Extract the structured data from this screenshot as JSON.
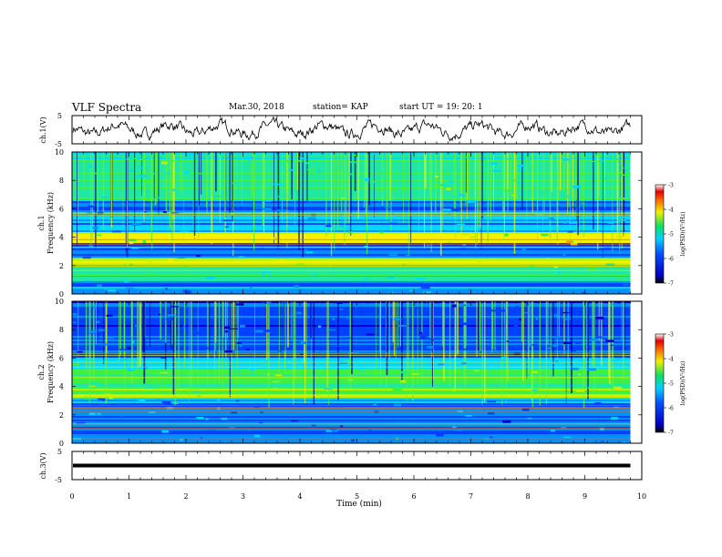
{
  "header": {
    "title": "VLF Spectra",
    "date": "Mar.30, 2018",
    "station": "station= KAP",
    "start": "start  UT =   19: 20: 1"
  },
  "chart_data": [
    {
      "type": "line",
      "panel": "ch1-waveform",
      "ylabel": "ch.1(V)",
      "ylim": [
        -5,
        5
      ],
      "yticks": [
        "5",
        "-5"
      ],
      "xlim": [
        0,
        10
      ],
      "line_color": "#000000",
      "data_end_min": 9.8
    },
    {
      "type": "heatmap",
      "panel": "ch1-spectrogram",
      "ylabel": "Frequency (kHz)",
      "channel_label": "ch.1",
      "ylim": [
        0,
        10
      ],
      "yticks": [
        "0",
        "2",
        "4",
        "6",
        "8",
        "10"
      ],
      "xlim": [
        0,
        10
      ],
      "colorbar": {
        "label": "log(PSD)(V²/Hz)",
        "range": [
          -7,
          -3
        ],
        "ticks": [
          "-3",
          "-4",
          "-5",
          "-6",
          "-7"
        ]
      }
    },
    {
      "type": "heatmap",
      "panel": "ch2-spectrogram",
      "ylabel": "Frequency (kHz)",
      "channel_label": "ch.2",
      "ylim": [
        0,
        10
      ],
      "yticks": [
        "0",
        "2",
        "4",
        "6",
        "8",
        "10"
      ],
      "xlim": [
        0,
        10
      ],
      "colorbar": {
        "label": "log(PSD)(V²/Hz)",
        "range": [
          -7,
          -3
        ],
        "ticks": [
          "-3",
          "-4",
          "-5",
          "-6",
          "-7"
        ]
      }
    },
    {
      "type": "line",
      "panel": "ch3-waveform",
      "ylabel": "ch.3(V)",
      "ylim": [
        -5,
        5
      ],
      "yticks": [
        "5",
        "-5"
      ],
      "xlim": [
        0,
        10
      ],
      "constant_value": 0,
      "line_color": "#000000",
      "data_end_min": 9.8
    }
  ],
  "xaxis": {
    "label": "Time (min)",
    "ticks": [
      "0",
      "1",
      "2",
      "3",
      "4",
      "5",
      "6",
      "7",
      "8",
      "9",
      "10"
    ]
  }
}
